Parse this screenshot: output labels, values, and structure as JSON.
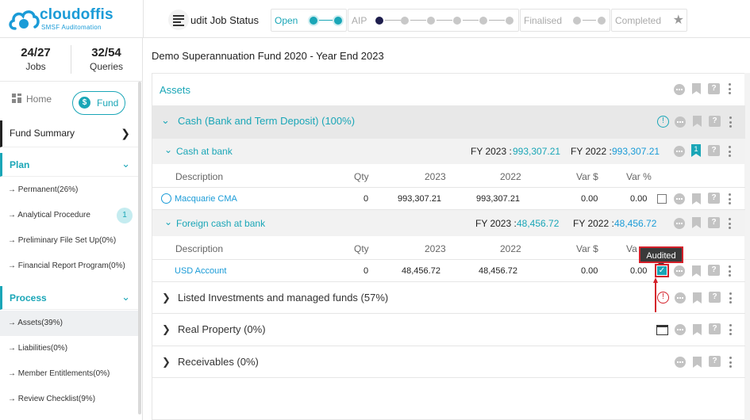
{
  "brand": {
    "name": "cloudoffis",
    "tagline": "SMSF Auditomation",
    "color": "#1a9bd7"
  },
  "header": {
    "title": "udit Job Status",
    "stages": [
      {
        "label": "Open",
        "state": "active"
      },
      {
        "label": "AIP",
        "state": "inactive"
      },
      {
        "label": "Finalised",
        "state": "inactive"
      },
      {
        "label": "Completed",
        "state": "inactive"
      }
    ]
  },
  "sidebar": {
    "counts": [
      {
        "value": "24/27",
        "caption": "Jobs"
      },
      {
        "value": "32/54",
        "caption": "Queries"
      }
    ],
    "tabs": {
      "home": "Home",
      "fund": "Fund",
      "fund_icon": "$"
    },
    "fund_summary": "Fund Summary",
    "plan": {
      "title": "Plan",
      "items": [
        {
          "label": "→ Permanent(26%)"
        },
        {
          "label": "→ Analytical Procedure",
          "badge": "1"
        },
        {
          "label": "→ Preliminary File Set Up(0%)"
        },
        {
          "label": "→ Financial Report Program(0%)"
        }
      ]
    },
    "process": {
      "title": "Process",
      "items": [
        {
          "label": "→ Assets(39%)",
          "selected": true
        },
        {
          "label": "→ Liabilities(0%)"
        },
        {
          "label": "→ Member Entitlements(0%)"
        },
        {
          "label": "→ Review Checklist(9%)"
        }
      ]
    }
  },
  "main": {
    "title": "Demo Superannuation Fund 2020 - Year End 2023",
    "section": "Assets",
    "groups": {
      "cash": "Cash (Bank and Term Deposit) (100%)",
      "listed": "Listed Investments and managed funds (57%)",
      "property": "Real Property (0%)",
      "receivables": "Receivables (0%)"
    },
    "sub_cash_bank": {
      "title": "Cash at bank",
      "fy2023_label": "FY 2023 :",
      "fy2023": "993,307.21",
      "fy2022_label": "FY 2022 :",
      "fy2022": "993,307.21",
      "bookmark_count": "1"
    },
    "sub_foreign": {
      "title": "Foreign cash at bank",
      "fy2023_label": "FY 2023 :",
      "fy2023": "48,456.72",
      "fy2022_label": "FY 2022 :",
      "fy2022": "48,456.72"
    },
    "columns": {
      "description": "Description",
      "qty": "Qty",
      "y2023": "2023",
      "y2022": "2022",
      "var_d": "Var $",
      "var_p": "Var %",
      "var_p_partial": "Va"
    },
    "rows": {
      "macquarie": {
        "description": "Macquarie CMA",
        "qty": "0",
        "y2023": "993,307.21",
        "y2022": "993,307.21",
        "var_d": "0.00",
        "var_p": "0.00"
      },
      "usd": {
        "description": "USD Account",
        "qty": "0",
        "y2023": "48,456.72",
        "y2022": "48,456.72",
        "var_d": "0.00",
        "var_p": "0.00"
      }
    },
    "tooltip": "Audited",
    "colors": {
      "accent": "#1aa6b7",
      "link": "#1a9bd7",
      "warning": "#d4202a"
    }
  }
}
